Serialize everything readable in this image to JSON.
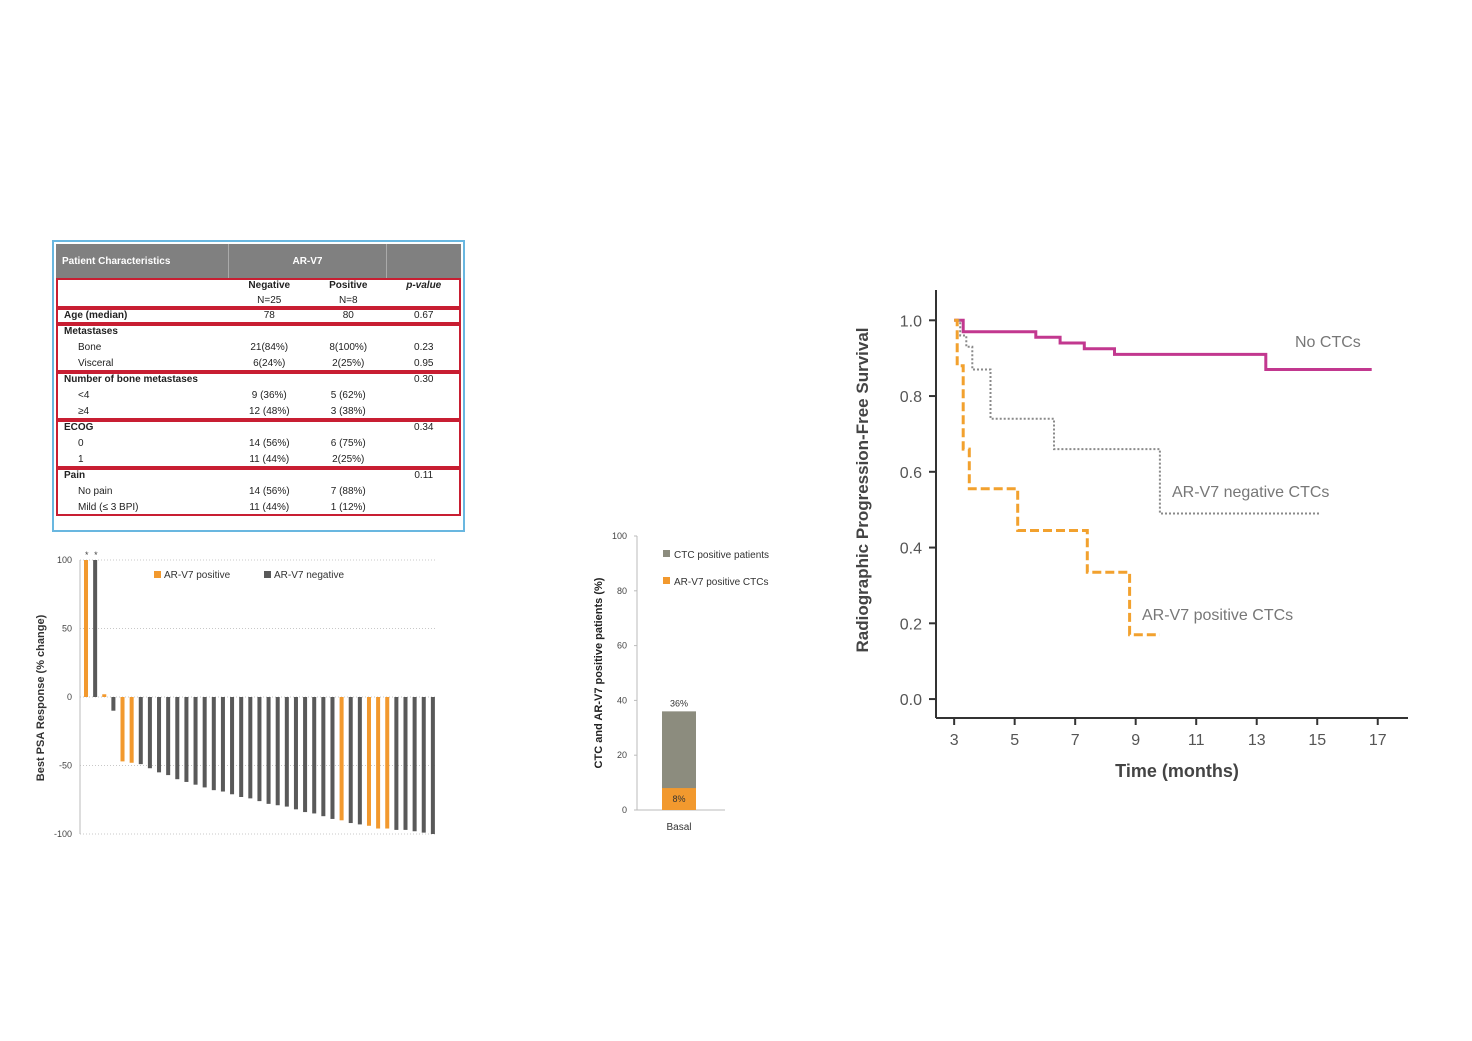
{
  "table": {
    "header": {
      "col1": "Patient Characteristics",
      "col2": "AR-V7",
      "col3": ""
    },
    "subheader": {
      "neg": "Negative",
      "neg_n": "N=25",
      "pos": "Positive",
      "pos_n": "N=8",
      "pval": "p-value"
    },
    "age": {
      "label": "Age (median)",
      "neg": "78",
      "pos": "80",
      "p": "0.67"
    },
    "metastases": {
      "label": "Metastases",
      "rows": [
        {
          "label": "Bone",
          "neg": "21(84%)",
          "pos": "8(100%)",
          "p": "0.23"
        },
        {
          "label": "Visceral",
          "neg": "6(24%)",
          "pos": "2(25%)",
          "p": "0.95"
        }
      ]
    },
    "bone_mets": {
      "label": "Number of bone metastases",
      "p": "0.30",
      "rows": [
        {
          "label": "<4",
          "neg": "9 (36%)",
          "pos": "5 (62%)"
        },
        {
          "label": "≥4",
          "neg": "12 (48%)",
          "pos": "3 (38%)"
        }
      ]
    },
    "ecog": {
      "label": "ECOG",
      "p": "0.34",
      "rows": [
        {
          "label": "0",
          "neg": "14 (56%)",
          "pos": "6 (75%)"
        },
        {
          "label": "1",
          "neg": "11 (44%)",
          "pos": "2(25%)"
        }
      ]
    },
    "pain": {
      "label": "Pain",
      "p": "0.11",
      "rows": [
        {
          "label": "No pain",
          "neg": "14 (56%)",
          "pos": "7 (88%)"
        },
        {
          "label": "Mild  (≤ 3 BPI)",
          "neg": "11 (44%)",
          "pos": "1 (12%)"
        }
      ]
    }
  },
  "chart_data": [
    {
      "type": "bar",
      "id": "waterfall",
      "ylabel": "Best PSA Response (% change)",
      "ylim": [
        -100,
        100
      ],
      "yticks": [
        "100",
        "50",
        "0",
        "-50",
        "-100"
      ],
      "grid": true,
      "legend": {
        "position": "top",
        "entries": [
          "AR-V7 positive",
          "AR-V7 negative"
        ]
      },
      "colors": {
        "AR-V7 positive": "#f2992e",
        "AR-V7 negative": "#595959"
      },
      "annotations": [
        "*",
        "*"
      ],
      "series_order": [
        "pos",
        "neg",
        "pos",
        "neg",
        "pos",
        "pos",
        "neg",
        "neg",
        "neg",
        "neg",
        "neg",
        "neg",
        "neg",
        "neg",
        "neg",
        "neg",
        "neg",
        "neg",
        "neg",
        "neg",
        "neg",
        "neg",
        "neg",
        "neg",
        "neg",
        "neg",
        "neg",
        "neg",
        "pos",
        "neg",
        "neg",
        "pos",
        "pos",
        "pos",
        "neg",
        "neg",
        "neg",
        "neg",
        "neg"
      ],
      "values": [
        100,
        100,
        2,
        -10,
        -47,
        -48,
        -49,
        -52,
        -55,
        -57,
        -60,
        -62,
        -64,
        -66,
        -68,
        -69,
        -71,
        -73,
        -74,
        -76,
        -78,
        -79,
        -80,
        -82,
        -84,
        -85,
        -87,
        -89,
        -90,
        -92,
        -93,
        -94,
        -96,
        -96,
        -97,
        -97,
        -98,
        -99,
        -100
      ]
    },
    {
      "type": "bar",
      "id": "stacked",
      "ylabel": "CTC and AR-V7 positive patients (%)",
      "ylim": [
        0,
        100
      ],
      "yticks": [
        "100",
        "80",
        "60",
        "40",
        "20",
        "0"
      ],
      "categories": [
        "Basal"
      ],
      "series": [
        {
          "name": "CTC positive patients",
          "values": [
            36
          ],
          "label": "36%",
          "color": "#8c8c7e"
        },
        {
          "name": "AR-V7 positive CTCs",
          "values": [
            8
          ],
          "label": "8%",
          "color": "#f2992e"
        }
      ],
      "legend": {
        "position": "top-right"
      }
    },
    {
      "type": "line",
      "id": "km",
      "ylabel": "Radiographic Progression-Free Survival",
      "xlabel": "Time (months)",
      "xlim": [
        2.4,
        18
      ],
      "ylim": [
        -0.05,
        1.08
      ],
      "xticks": [
        "3",
        "5",
        "7",
        "9",
        "11",
        "13",
        "15",
        "17"
      ],
      "yticks": [
        "0.0",
        "0.2",
        "0.4",
        "0.6",
        "0.8",
        "1.0"
      ],
      "series": [
        {
          "name": "No CTCs",
          "color": "#c2388f",
          "style": "solid",
          "x": [
            3.0,
            3.3,
            3.3,
            5.7,
            5.7,
            6.5,
            6.5,
            7.3,
            7.3,
            8.3,
            8.3,
            13.3,
            13.3,
            16.8
          ],
          "y": [
            1.0,
            1.0,
            0.97,
            0.97,
            0.955,
            0.955,
            0.94,
            0.94,
            0.925,
            0.925,
            0.91,
            0.91,
            0.87,
            0.87
          ]
        },
        {
          "name": "AR-V7 negative CTCs",
          "color": "#8a8a8a",
          "style": "dotted",
          "x": [
            3.0,
            3.2,
            3.2,
            3.4,
            3.4,
            3.6,
            3.6,
            4.2,
            4.2,
            6.3,
            6.3,
            9.8,
            9.8,
            15.1
          ],
          "y": [
            1.0,
            1.0,
            0.96,
            0.96,
            0.93,
            0.93,
            0.87,
            0.87,
            0.74,
            0.74,
            0.66,
            0.66,
            0.49,
            0.49
          ]
        },
        {
          "name": "AR-V7 positive CTCs",
          "color": "#f2a12e",
          "style": "dashed",
          "x": [
            3.0,
            3.1,
            3.1,
            3.3,
            3.3,
            3.5,
            3.5,
            5.1,
            5.1,
            7.4,
            7.4,
            8.8,
            8.8,
            9.8
          ],
          "y": [
            1.0,
            1.0,
            0.88,
            0.88,
            0.66,
            0.66,
            0.555,
            0.555,
            0.445,
            0.445,
            0.335,
            0.335,
            0.17,
            0.17
          ]
        }
      ]
    }
  ]
}
